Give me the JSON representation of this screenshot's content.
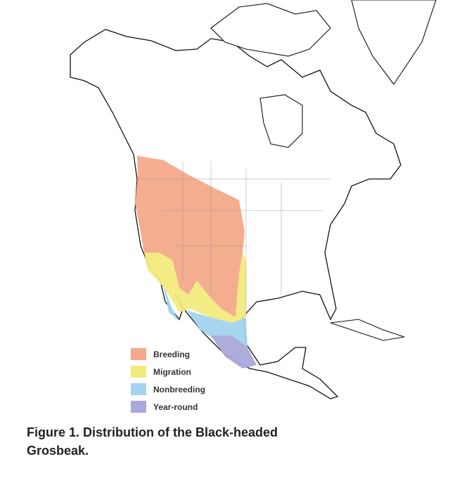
{
  "legend": [
    {
      "label": "Breeding",
      "color": "#F5A98A"
    },
    {
      "label": "Migration",
      "color": "#F3EA7E"
    },
    {
      "label": "Nonbreeding",
      "color": "#A3D3EE"
    },
    {
      "label": "Year-round",
      "color": "#A9A8DA"
    }
  ],
  "caption": "Figure 1. Distribution of the Black-headed Grosbeak."
}
